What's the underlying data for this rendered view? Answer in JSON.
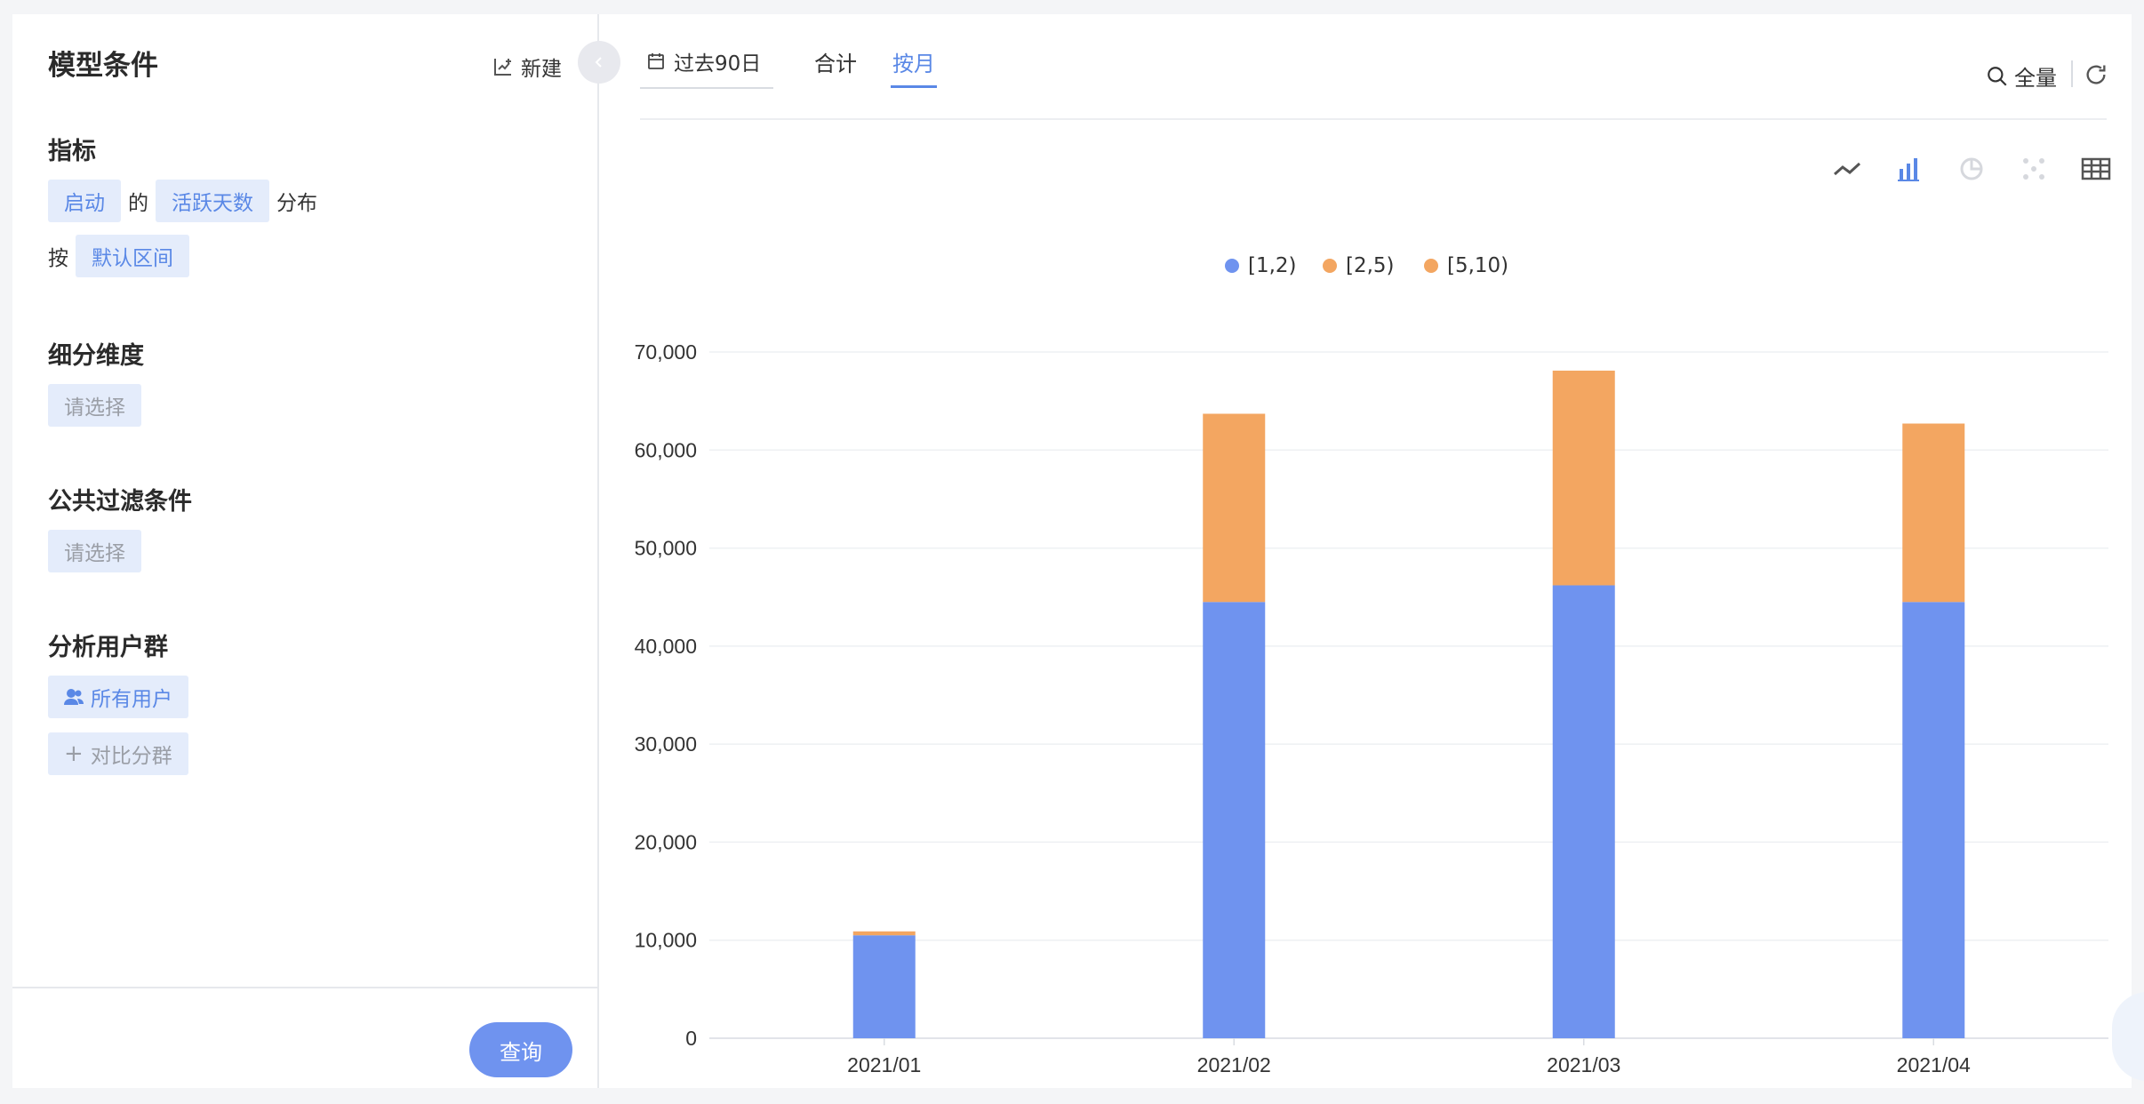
{
  "left": {
    "title": "模型条件",
    "new_label": "新建",
    "metric": {
      "title": "指标",
      "event": "启动",
      "of": "的",
      "measure": "活跃天数",
      "dist": "分布",
      "by": "按",
      "interval": "默认区间"
    },
    "breakdown": {
      "title": "细分维度",
      "placeholder": "请选择"
    },
    "filter": {
      "title": "公共过滤条件",
      "placeholder": "请选择"
    },
    "cohort": {
      "title": "分析用户群",
      "all_users": "所有用户",
      "compare": "对比分群"
    },
    "query_label": "查询"
  },
  "right": {
    "date_label": "过去90日",
    "tabs": [
      {
        "label": "合计",
        "active": false
      },
      {
        "label": "按月",
        "active": true
      }
    ],
    "search_label": "全量",
    "chart_icons": [
      "line-chart-icon",
      "bar-chart-icon",
      "pie-chart-icon",
      "scatter-chart-icon",
      "table-icon"
    ]
  },
  "colors": {
    "accent": "#5a88e6",
    "series_blue": "#6f93ef",
    "series_orange": "#f3a661",
    "series_orange2": "#f3a661"
  },
  "chart_data": {
    "type": "bar",
    "stacked": true,
    "categories": [
      "2021/01",
      "2021/02",
      "2021/03",
      "2021/04"
    ],
    "series": [
      {
        "name": "[1,2)",
        "color": "#6f93ef",
        "values": [
          10500,
          44500,
          46200,
          44500
        ]
      },
      {
        "name": "[2,5)",
        "color": "#f3a661",
        "values": [
          400,
          19200,
          21900,
          18200
        ]
      },
      {
        "name": "[5,10)",
        "color": "#f3a661",
        "values": [
          0,
          0,
          0,
          0
        ]
      }
    ],
    "ylim": [
      0,
      70000
    ],
    "yticks": [
      "0",
      "10,000",
      "20,000",
      "30,000",
      "40,000",
      "50,000",
      "60,000",
      "70,000"
    ],
    "grid": true,
    "legend": "top-center"
  }
}
